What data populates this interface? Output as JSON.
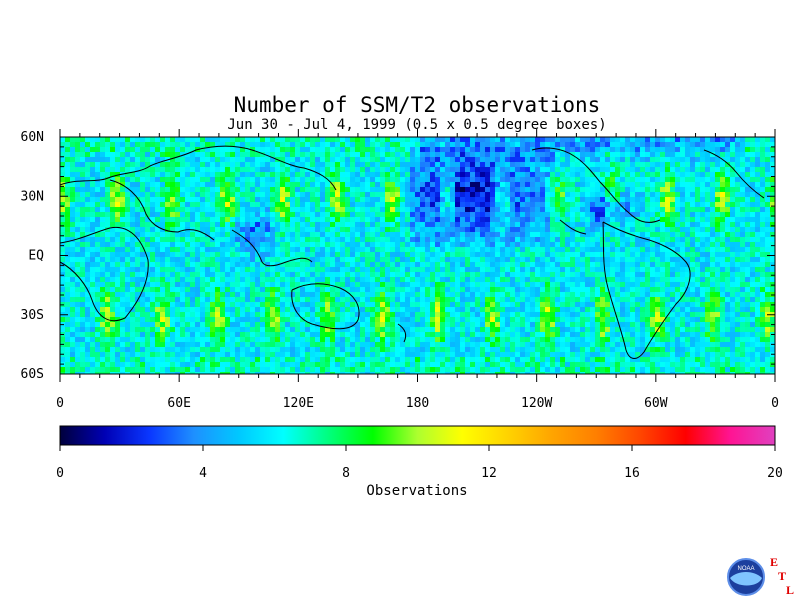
{
  "chart_data": {
    "type": "heatmap",
    "title": "Number of SSM/T2 observations",
    "subtitle": "Jun 30 - Jul 4, 1999 (0.5 x 0.5 degree boxes)",
    "x_ticks": [
      "0",
      "60E",
      "120E",
      "180",
      "120W",
      "60W",
      "0"
    ],
    "y_ticks": [
      "60N",
      "30N",
      "EQ",
      "30S",
      "60S"
    ],
    "xlim": [
      0,
      360
    ],
    "ylim": [
      -60,
      60
    ],
    "colorbar": {
      "label": "Observations",
      "range": [
        0,
        20
      ],
      "ticks": [
        "0",
        "4",
        "8",
        "12",
        "16",
        "20"
      ],
      "colors": [
        "#00003c",
        "#0000b4",
        "#0a37ff",
        "#1e90ff",
        "#00c8ff",
        "#00ffff",
        "#00ff7f",
        "#00ff00",
        "#adff2f",
        "#ffff00",
        "#ffd400",
        "#ffa500",
        "#ff7f00",
        "#ff4500",
        "#ff0000",
        "#ff1493",
        "#e040c0"
      ]
    },
    "field_description": {
      "typical_value": 6,
      "swath_peak_value": 10,
      "swath_bands_per_hemisphere": 13,
      "low_regions": [
        "central-north-pacific",
        "gulf-of-mexico-caribbean",
        "north-atlantic-high-latitude",
        "south-asia"
      ]
    }
  },
  "logo": {
    "letters": [
      "E",
      "T",
      "L"
    ],
    "agency_text": "NOAA"
  }
}
